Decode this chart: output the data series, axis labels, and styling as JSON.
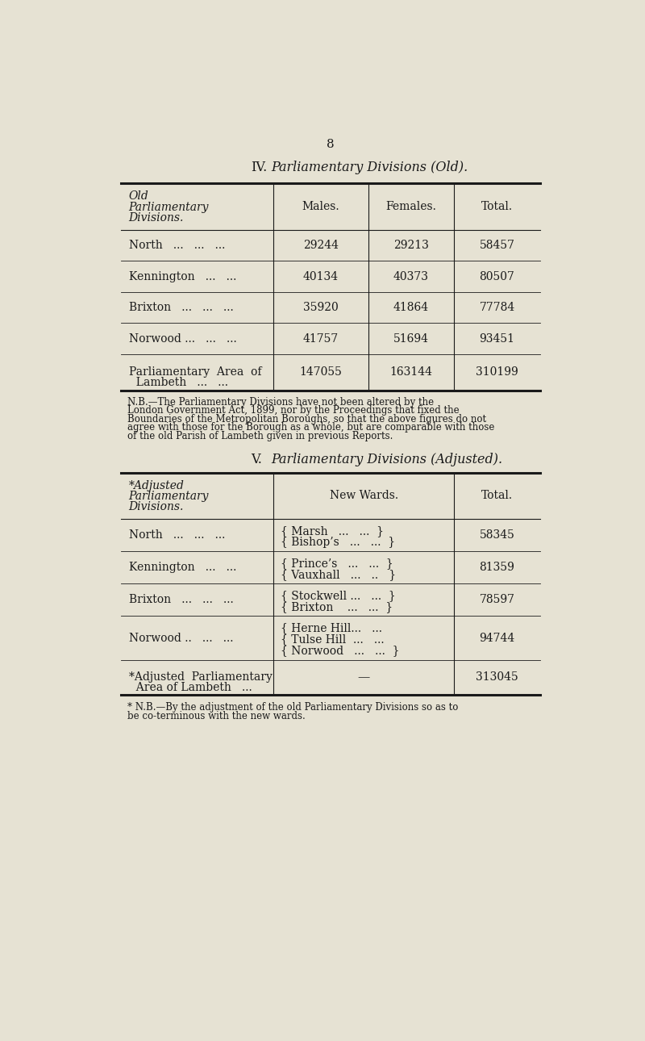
{
  "bg_color": "#e6e2d3",
  "text_color": "#1a1a1a",
  "page_number": "8",
  "section_iv_title_prefix": "IV.",
  "section_iv_title_italic": "Parliamentary Divisions (Old).",
  "section_v_title_prefix": "V.",
  "section_v_title_italic": "Parliamentary Divisions (Adjusted).",
  "t1_header_col1_lines": [
    "Old",
    "Parliamentary",
    "Divisions."
  ],
  "t1_header_col2": "Males.",
  "t1_header_col3": "Females.",
  "t1_header_col4": "Total.",
  "t1_rows": [
    {
      "name": "North   ...   ...   ...",
      "male": "29244",
      "female": "29213",
      "total": "58457"
    },
    {
      "name": "Kennington   ...   ...",
      "male": "40134",
      "female": "40373",
      "total": "80507"
    },
    {
      "name": "Brixton   ...   ...   ...",
      "male": "35920",
      "female": "41864",
      "total": "77784"
    },
    {
      "name": "Norwood ...   ...   ...",
      "male": "41757",
      "female": "51694",
      "total": "93451"
    },
    {
      "name_lines": [
        "Parliamentary  Area  of",
        "  Lambeth   ...   ..."
      ],
      "male": "147055",
      "female": "163144",
      "total": "310199"
    }
  ],
  "nb1_line1": "N.B.—The Parliamentary Divisions have not been altered by the",
  "nb1_line2": "London Government Act, 1899, nor by the Proceedings that fixed the",
  "nb1_line3": "Boundaries of the Metropolitan Boroughs, so that the above figures do not",
  "nb1_line4": "agree with those for the Borough as a whole, but are comparable with those",
  "nb1_line5": "of the old Parish of Lambeth given in previous Reports.",
  "t2_header_col1_lines": [
    "*Adjusted",
    "Parliamentary",
    "Divisions."
  ],
  "t2_header_col2": "New Wards.",
  "t2_header_col3": "Total.",
  "t2_rows": [
    {
      "div": "North   ...   ...   ...",
      "wards": [
        "{ Marsh   ...   ...  }",
        "{ Bishop’s   ...   ...  }"
      ],
      "total": "58345"
    },
    {
      "div": "Kennington   ...   ...",
      "wards": [
        "{ Prince’s   ...   ...  }",
        "{ Vauxhall   ...   ..   }"
      ],
      "total": "81359"
    },
    {
      "div": "Brixton   ...   ...   ...",
      "wards": [
        "{ Stockwell ...   ...  }",
        "{ Brixton    ...   ...  }"
      ],
      "total": "78597"
    },
    {
      "div": "Norwood ..   ...   ...",
      "wards": [
        "{ Herne Hill...   ...",
        "{ Tulse Hill  ...   ...",
        "{ Norwood   ...   ...  }"
      ],
      "total": "94744"
    }
  ],
  "t2_total_div_lines": [
    "*Adjusted  Parliamentary",
    "  Area of Lambeth   ..."
  ],
  "t2_total_wards": "—",
  "t2_total": "313045",
  "nb2_line1": "* N.B.—By the adjustment of the old Parliamentary Divisions so as to",
  "nb2_line2": "be co-terminous with the new wards."
}
